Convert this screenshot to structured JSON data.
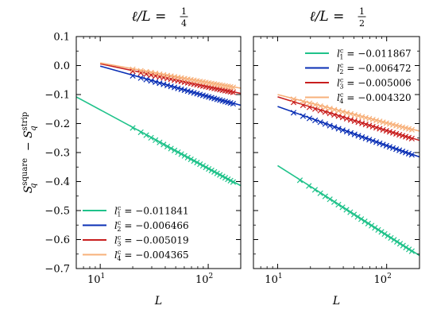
{
  "chart_data": [
    {
      "type": "scatter",
      "title": "ℓ/L = 1/4",
      "xlabel": "L",
      "ylabel": "S_q^square − S_q^strip",
      "xscale": "log",
      "xlim": [
        6,
        200
      ],
      "ylim": [
        -0.7,
        0.1
      ],
      "x_ticks": [
        {
          "value": 10,
          "label": "10^1"
        },
        {
          "value": 100,
          "label": "10^2"
        }
      ],
      "y_ticks": [
        0.1,
        0.0,
        -0.1,
        -0.2,
        -0.3,
        -0.4,
        -0.5,
        -0.6,
        -0.7
      ],
      "y_tick_labels": [
        "0.1",
        "0.0",
        "−0.1",
        "−0.2",
        "−0.3",
        "−0.4",
        "−0.5",
        "−0.6",
        "−0.7"
      ],
      "legend": {
        "placement": "lower-left",
        "entries": [
          {
            "sym": "l",
            "sub": "1",
            "sup": "c",
            "value": "= −0.011841"
          },
          {
            "sym": "l",
            "sub": "2",
            "sup": "c",
            "value": "= −0.006466"
          },
          {
            "sym": "l",
            "sub": "3",
            "sup": "c",
            "value": "= −0.005019"
          },
          {
            "sym": "l",
            "sub": "4",
            "sup": "c",
            "value": "= −0.004365"
          }
        ]
      },
      "series": [
        {
          "color": "#1fc28a",
          "fit": {
            "x": [
              6,
              200
            ],
            "y": [
              -0.108,
              -0.414
            ]
          },
          "points": {
            "x_range": [
              20,
              170
            ],
            "count": 30
          }
        },
        {
          "color": "#0a2fb5",
          "fit": {
            "x": [
              10,
              200
            ],
            "y": [
              -0.002,
              -0.137
            ]
          },
          "points": {
            "x_range": [
              20,
              170
            ],
            "count": 30
          }
        },
        {
          "color": "#c81e1e",
          "fit": {
            "x": [
              10,
              200
            ],
            "y": [
              0.006,
              -0.096
            ]
          },
          "points": {
            "x_range": [
              20,
              170
            ],
            "count": 30
          }
        },
        {
          "color": "#f7b07a",
          "fit": {
            "x": [
              10,
              200
            ],
            "y": [
              0.009,
              -0.078
            ]
          },
          "points": {
            "x_range": [
              20,
              170
            ],
            "count": 30
          }
        }
      ]
    },
    {
      "type": "scatter",
      "title": "ℓ/L = 1/2",
      "xlabel": "L",
      "xscale": "log",
      "xlim": [
        6,
        200
      ],
      "ylim": [
        -0.7,
        0.1
      ],
      "x_ticks": [
        {
          "value": 10,
          "label": "10^1"
        },
        {
          "value": 100,
          "label": "10^2"
        }
      ],
      "legend": {
        "placement": "top-right",
        "entries": [
          {
            "sym": "l",
            "sub": "1",
            "sup": "c",
            "value": "= −0.011867"
          },
          {
            "sym": "l",
            "sub": "2",
            "sup": "c",
            "value": "= −0.006472"
          },
          {
            "sym": "l",
            "sub": "3",
            "sup": "c",
            "value": "= −0.005006"
          },
          {
            "sym": "l",
            "sub": "4",
            "sup": "c",
            "value": "= −0.004320"
          }
        ]
      },
      "series": [
        {
          "color": "#1fc28a",
          "fit": {
            "x": [
              10,
              200
            ],
            "y": [
              -0.345,
              -0.655
            ]
          },
          "points": {
            "x_range": [
              16,
              170
            ],
            "count": 30
          }
        },
        {
          "color": "#0a2fb5",
          "fit": {
            "x": [
              10,
              200
            ],
            "y": [
              -0.141,
              -0.315
            ]
          },
          "points": {
            "x_range": [
              14,
              170
            ],
            "count": 30
          }
        },
        {
          "color": "#c81e1e",
          "fit": {
            "x": [
              10,
              200
            ],
            "y": [
              -0.108,
              -0.258
            ]
          },
          "points": {
            "x_range": [
              14,
              170
            ],
            "count": 30
          }
        },
        {
          "color": "#f7b07a",
          "fit": {
            "x": [
              10,
              200
            ],
            "y": [
              -0.1,
              -0.226
            ]
          },
          "points": {
            "x_range": [
              14,
              170
            ],
            "count": 30
          }
        }
      ]
    }
  ]
}
